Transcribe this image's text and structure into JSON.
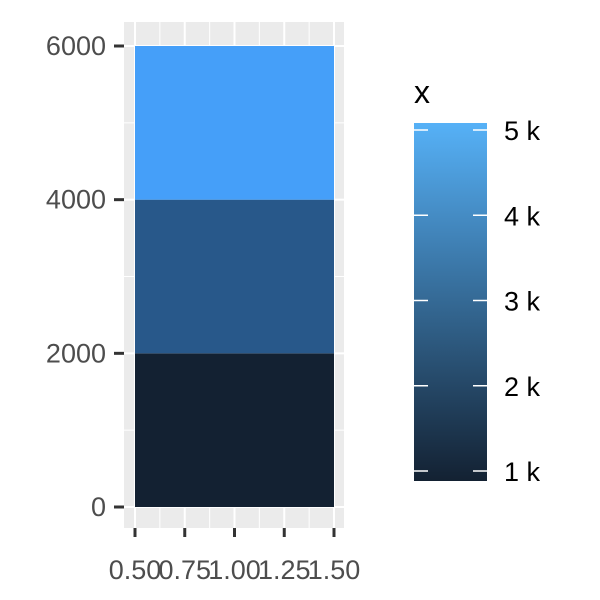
{
  "chart_data": {
    "type": "bar",
    "stacked": true,
    "x": [
      1
    ],
    "series": [
      {
        "fill_value": 1000,
        "value": 2000,
        "color": "#132132"
      },
      {
        "fill_value": 3000,
        "value": 2000,
        "color": "#28588a"
      },
      {
        "fill_value": 5000,
        "value": 2000,
        "color": "#459ff9"
      }
    ],
    "xlim": [
      0.5,
      1.5
    ],
    "ylim": [
      0,
      6000
    ],
    "x_ticks": [
      0.5,
      0.75,
      1.0,
      1.25,
      1.5
    ],
    "x_tick_labels": [
      "0.50",
      "0.75",
      "1.00",
      "1.25",
      "1.50"
    ],
    "y_ticks": [
      0,
      2000,
      4000,
      6000
    ],
    "y_tick_labels": [
      "0",
      "2000",
      "4000",
      "6000"
    ],
    "grid": true,
    "legend": {
      "title": "x",
      "type": "colorbar",
      "position": "right",
      "range": [
        1000,
        5000
      ],
      "low_color": "#132132",
      "high_color": "#56b1f7",
      "ticks": [
        5000,
        4000,
        3000,
        2000,
        1000
      ],
      "tick_labels": [
        "5 k",
        "4 k",
        "3 k",
        "2 k",
        "1 k"
      ]
    }
  }
}
